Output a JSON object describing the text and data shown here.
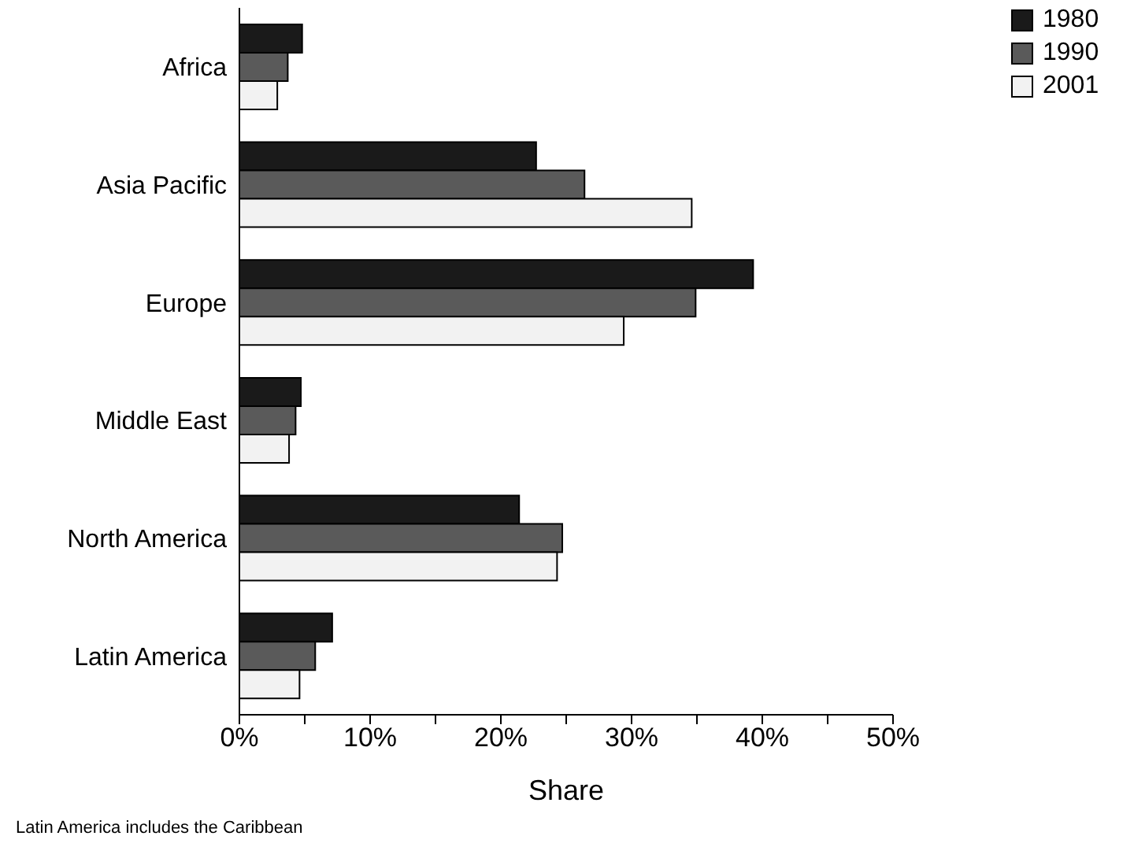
{
  "chart_data": {
    "type": "bar",
    "orientation": "horizontal",
    "xlabel": "Share",
    "categories": [
      "Africa",
      "Asia Pacific",
      "Europe",
      "Middle East",
      "North America",
      "Latin America"
    ],
    "series": [
      {
        "name": "1980",
        "color": "#1a1a1a",
        "values": [
          4.8,
          22.7,
          39.3,
          4.7,
          21.4,
          7.1
        ]
      },
      {
        "name": "1990",
        "color": "#5a5a5a",
        "values": [
          3.7,
          26.4,
          34.9,
          4.3,
          24.7,
          5.8
        ]
      },
      {
        "name": "2001",
        "color": "#f2f2f2",
        "values": [
          2.9,
          34.6,
          29.4,
          3.8,
          24.3,
          4.6
        ]
      }
    ],
    "xlim": [
      0,
      50
    ],
    "xticks": [
      {
        "value": 0,
        "label": "0%"
      },
      {
        "value": 5,
        "label": null
      },
      {
        "value": 10,
        "label": "10%"
      },
      {
        "value": 15,
        "label": null
      },
      {
        "value": 20,
        "label": "20%"
      },
      {
        "value": 25,
        "label": null
      },
      {
        "value": 30,
        "label": "30%"
      },
      {
        "value": 35,
        "label": null
      },
      {
        "value": 40,
        "label": "40%"
      },
      {
        "value": 45,
        "label": null
      },
      {
        "value": 50,
        "label": "50%"
      }
    ],
    "legend": "top right",
    "grid": false,
    "annotations": [
      "Latin America includes the Caribbean"
    ]
  }
}
